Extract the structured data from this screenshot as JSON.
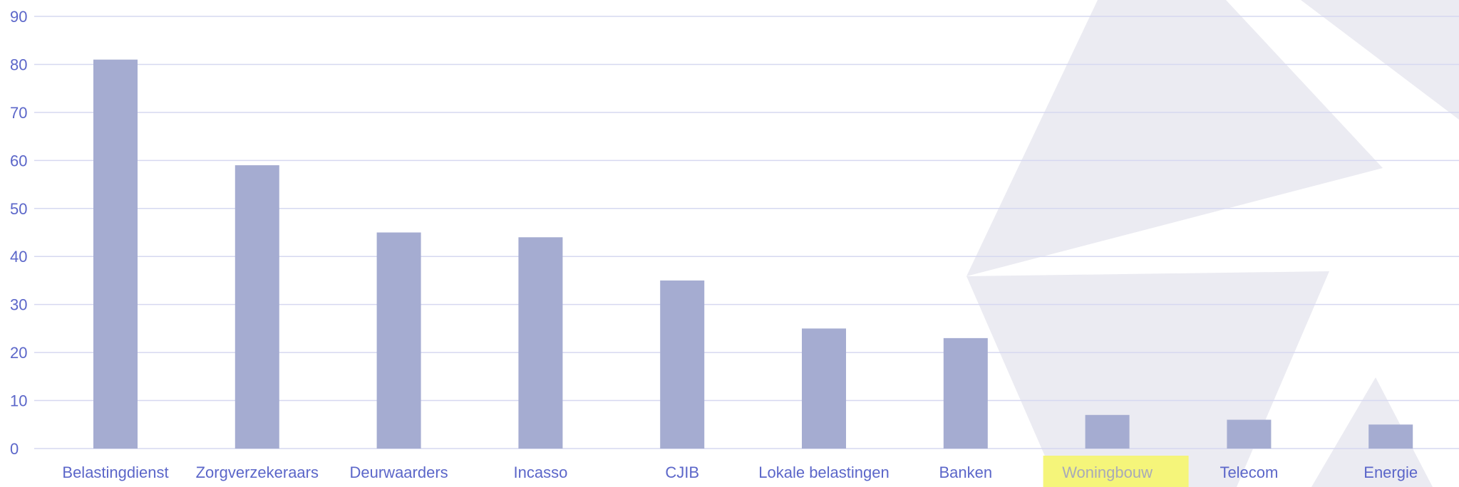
{
  "chart_data": {
    "type": "bar",
    "title": "",
    "xlabel": "",
    "ylabel": "",
    "categories": [
      "Belastingdienst",
      "Zorgverzekeraars",
      "Deurwaarders",
      "Incasso",
      "CJIB",
      "Lokale belastingen",
      "Banken",
      "Woningbouw",
      "Telecom",
      "Energie"
    ],
    "values": [
      81,
      59,
      45,
      44,
      35,
      25,
      23,
      7,
      6,
      5
    ],
    "ylim": [
      0,
      90
    ],
    "yticks": [
      "0",
      "10",
      "20",
      "30",
      "40",
      "50",
      "60",
      "70",
      "80",
      "90"
    ],
    "grid": true,
    "highlighted_category": "Woningbouw",
    "colors": {
      "bar": "#a5acd1",
      "label": "#5b66c9",
      "grid": "#d6d8f0",
      "highlight": "#f5f57a",
      "background_shape": "#ebebf2"
    }
  }
}
